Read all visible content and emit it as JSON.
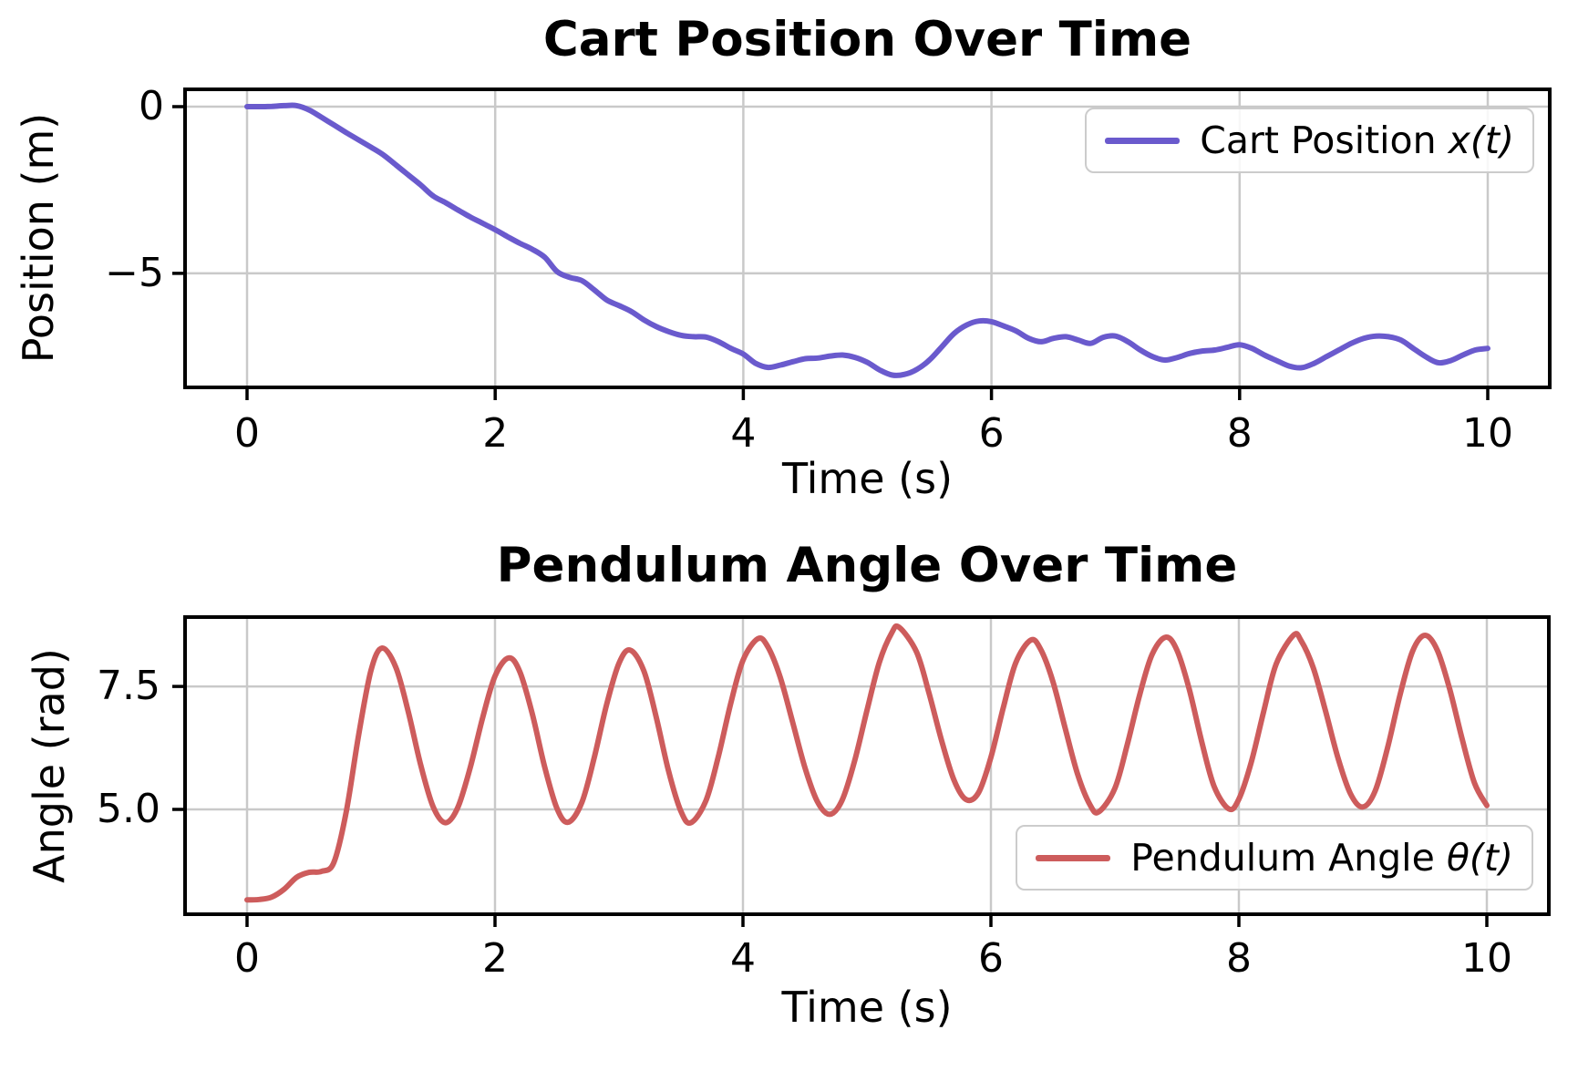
{
  "chart_data": [
    {
      "type": "line",
      "title": "Cart Position Over Time",
      "xlabel": "Time (s)",
      "ylabel": "Position (m)",
      "xlim": [
        -0.5,
        10.5
      ],
      "ylim": [
        -8.42,
        0.52
      ],
      "xticks": [
        0,
        2,
        4,
        6,
        8,
        10
      ],
      "xtick_labels": [
        "0",
        "2",
        "4",
        "6",
        "8",
        "10"
      ],
      "yticks": [
        0,
        -5
      ],
      "ytick_labels": [
        "0",
        "−5"
      ],
      "grid": true,
      "grid_color": "#c9c9c9",
      "legend_position": "upper right",
      "series": [
        {
          "name": "Cart Position x(t)",
          "legend_prefix": "Cart Position ",
          "legend_math": "x(t)",
          "color": "#6A5ACD",
          "x": [
            0,
            0.1,
            0.2,
            0.3,
            0.4,
            0.5,
            0.6,
            0.7,
            0.8,
            0.9,
            1.0,
            1.1,
            1.2,
            1.3,
            1.4,
            1.5,
            1.6,
            1.7,
            1.8,
            1.9,
            2.0,
            2.1,
            2.2,
            2.3,
            2.4,
            2.5,
            2.6,
            2.7,
            2.8,
            2.9,
            3.0,
            3.1,
            3.2,
            3.3,
            3.4,
            3.5,
            3.6,
            3.7,
            3.8,
            3.9,
            4.0,
            4.1,
            4.2,
            4.3,
            4.4,
            4.5,
            4.6,
            4.7,
            4.8,
            4.9,
            5.0,
            5.1,
            5.2,
            5.3,
            5.4,
            5.5,
            5.6,
            5.7,
            5.8,
            5.9,
            6.0,
            6.1,
            6.2,
            6.3,
            6.4,
            6.5,
            6.6,
            6.7,
            6.8,
            6.9,
            7.0,
            7.1,
            7.2,
            7.3,
            7.4,
            7.5,
            7.6,
            7.7,
            7.8,
            7.9,
            8.0,
            8.1,
            8.2,
            8.3,
            8.4,
            8.5,
            8.6,
            8.7,
            8.8,
            8.9,
            9.0,
            9.1,
            9.2,
            9.3,
            9.4,
            9.5,
            9.6,
            9.7,
            9.8,
            9.9,
            10.0
          ],
          "y": [
            0.0,
            0.0,
            0.01,
            0.03,
            0.03,
            -0.1,
            -0.32,
            -0.55,
            -0.78,
            -1.0,
            -1.22,
            -1.45,
            -1.75,
            -2.05,
            -2.35,
            -2.68,
            -2.88,
            -3.1,
            -3.31,
            -3.5,
            -3.69,
            -3.9,
            -4.1,
            -4.28,
            -4.52,
            -4.95,
            -5.12,
            -5.22,
            -5.5,
            -5.8,
            -5.97,
            -6.15,
            -6.4,
            -6.6,
            -6.75,
            -6.86,
            -6.9,
            -6.91,
            -7.05,
            -7.25,
            -7.42,
            -7.7,
            -7.82,
            -7.75,
            -7.65,
            -7.56,
            -7.54,
            -7.48,
            -7.45,
            -7.52,
            -7.67,
            -7.9,
            -8.05,
            -8.03,
            -7.88,
            -7.6,
            -7.2,
            -6.8,
            -6.55,
            -6.43,
            -6.45,
            -6.58,
            -6.73,
            -6.95,
            -7.05,
            -6.95,
            -6.9,
            -7.0,
            -7.1,
            -6.92,
            -6.88,
            -7.05,
            -7.3,
            -7.5,
            -7.6,
            -7.52,
            -7.4,
            -7.33,
            -7.3,
            -7.22,
            -7.14,
            -7.25,
            -7.45,
            -7.62,
            -7.78,
            -7.83,
            -7.7,
            -7.5,
            -7.3,
            -7.1,
            -6.95,
            -6.88,
            -6.9,
            -7.0,
            -7.25,
            -7.5,
            -7.68,
            -7.62,
            -7.45,
            -7.3,
            -7.25
          ]
        }
      ]
    },
    {
      "type": "line",
      "title": "Pendulum Angle Over Time",
      "xlabel": "Time (s)",
      "ylabel": "Angle (rad)",
      "xlim": [
        -0.5,
        10.5
      ],
      "ylim": [
        2.87,
        8.91
      ],
      "xticks": [
        0,
        2,
        4,
        6,
        8,
        10
      ],
      "xtick_labels": [
        "0",
        "2",
        "4",
        "6",
        "8",
        "10"
      ],
      "yticks": [
        7.5,
        5.0
      ],
      "ytick_labels": [
        "7.5",
        "5.0"
      ],
      "grid": true,
      "grid_color": "#c9c9c9",
      "legend_position": "lower right",
      "series": [
        {
          "name": "Pendulum Angle θ(t)",
          "legend_prefix": "Pendulum Angle ",
          "legend_math": "θ(t)",
          "color": "#CD5C5C",
          "x": [
            0,
            0.1,
            0.2,
            0.3,
            0.4,
            0.5,
            0.6,
            0.7,
            0.8,
            0.9,
            1.0,
            1.09,
            1.2,
            1.3,
            1.4,
            1.5,
            1.6,
            1.7,
            1.8,
            1.9,
            2.0,
            2.11,
            2.2,
            2.3,
            2.4,
            2.5,
            2.59,
            2.7,
            2.8,
            2.9,
            3.0,
            3.09,
            3.2,
            3.3,
            3.4,
            3.5,
            3.58,
            3.7,
            3.8,
            3.9,
            4.0,
            4.12,
            4.2,
            4.3,
            4.4,
            4.5,
            4.6,
            4.7,
            4.8,
            4.9,
            5.0,
            5.1,
            5.2,
            5.26,
            5.4,
            5.5,
            5.6,
            5.7,
            5.8,
            5.9,
            6.0,
            6.1,
            6.2,
            6.32,
            6.4,
            6.5,
            6.6,
            6.7,
            6.8,
            6.87,
            7.0,
            7.1,
            7.2,
            7.3,
            7.41,
            7.5,
            7.6,
            7.7,
            7.8,
            7.92,
            8.0,
            8.1,
            8.2,
            8.3,
            8.44,
            8.5,
            8.6,
            8.7,
            8.8,
            8.9,
            9.0,
            9.1,
            9.2,
            9.3,
            9.4,
            9.5,
            9.6,
            9.7,
            9.8,
            9.9,
            10.0
          ],
          "y": [
            3.16,
            3.17,
            3.22,
            3.38,
            3.62,
            3.72,
            3.74,
            3.92,
            4.95,
            6.51,
            7.83,
            8.28,
            7.89,
            6.99,
            5.91,
            5.06,
            4.73,
            5.04,
            5.85,
            6.86,
            7.71,
            8.08,
            7.8,
            6.95,
            5.87,
            5.02,
            4.74,
            5.14,
            6.05,
            7.13,
            7.97,
            8.24,
            7.82,
            6.88,
            5.78,
            4.96,
            4.73,
            5.17,
            6.06,
            7.14,
            8.03,
            8.47,
            8.31,
            7.69,
            6.78,
            5.85,
            5.16,
            4.9,
            5.19,
            5.98,
            7.01,
            7.99,
            8.59,
            8.7,
            8.2,
            7.37,
            6.42,
            5.61,
            5.2,
            5.34,
            6.06,
            7.07,
            7.98,
            8.44,
            8.26,
            7.6,
            6.64,
            5.71,
            5.09,
            4.95,
            5.43,
            6.32,
            7.33,
            8.15,
            8.5,
            8.24,
            7.44,
            6.38,
            5.47,
            5.01,
            5.21,
            5.96,
            6.99,
            7.95,
            8.54,
            8.44,
            7.88,
            6.99,
            6.04,
            5.32,
            5.05,
            5.38,
            6.26,
            7.33,
            8.21,
            8.54,
            8.24,
            7.45,
            6.44,
            5.54,
            5.08
          ]
        }
      ]
    }
  ]
}
